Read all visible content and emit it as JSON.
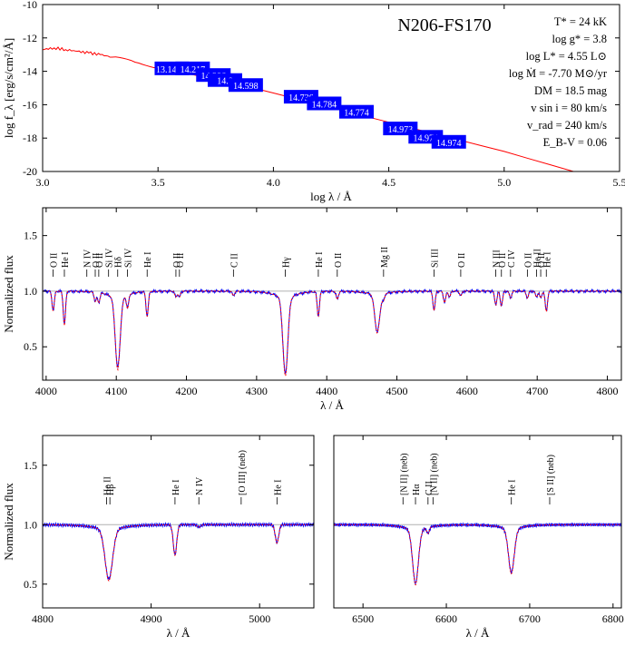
{
  "colors": {
    "model": "#ff0000",
    "observed": "#0000ff",
    "axis": "#000000",
    "photometry_box": "#0000ff",
    "photometry_text": "#ffffff",
    "reference_line": "#b0b0b0"
  },
  "chart_data": [
    {
      "type": "line",
      "panel": "sed",
      "title": "N206-FS170",
      "xlabel": "log λ / Å",
      "ylabel": "log f_λ [erg/s/cm²/Å]",
      "xlim": [
        3.0,
        5.5
      ],
      "ylim": [
        -20,
        -10
      ],
      "xticks": [
        "3.0",
        "3.5",
        "4.0",
        "4.5",
        "5.0",
        "5.5"
      ],
      "yticks": [
        "-10",
        "-12",
        "-14",
        "-16",
        "-18",
        "-20"
      ],
      "parameters": [
        "T* = 24 kK",
        "log g* = 3.8",
        "log L* = 4.55 L⊙",
        "log Ṁ = -7.70 M⊙/yr",
        "DM = 18.5 mag",
        "v sin i = 80 km/s",
        "v_rad = 240 km/s",
        "E_B-V = 0.06"
      ],
      "model_sed": {
        "x": [
          3.0,
          3.05,
          3.1,
          3.15,
          3.2,
          3.25,
          3.3,
          3.4,
          3.5,
          3.6,
          3.7,
          3.8,
          3.9,
          4.0,
          4.1,
          4.2,
          4.3,
          4.4,
          4.5,
          4.6,
          4.7,
          4.8,
          4.9,
          5.0,
          5.1,
          5.2,
          5.3
        ],
        "y": [
          -12.7,
          -12.6,
          -12.7,
          -12.8,
          -12.9,
          -13.0,
          -13.15,
          -13.45,
          -13.75,
          -14.05,
          -14.35,
          -14.65,
          -14.95,
          -15.3,
          -15.65,
          -16.0,
          -16.35,
          -16.7,
          -17.05,
          -17.4,
          -17.75,
          -18.1,
          -18.45,
          -18.8,
          -19.2,
          -19.6,
          -20.0
        ]
      },
      "photometry": [
        {
          "x": 3.56,
          "y": -13.85,
          "label": "13.14.21"
        },
        {
          "x": 3.65,
          "y": -13.85,
          "label": "14.217"
        },
        {
          "x": 3.74,
          "y": -14.25,
          "label": "14.386"
        },
        {
          "x": 3.79,
          "y": -14.55,
          "label": "14.8"
        },
        {
          "x": 3.88,
          "y": -14.85,
          "label": "14.598"
        },
        {
          "x": 4.12,
          "y": -15.55,
          "label": "14.736"
        },
        {
          "x": 4.22,
          "y": -15.95,
          "label": "14.784"
        },
        {
          "x": 4.36,
          "y": -16.45,
          "label": "14.774"
        },
        {
          "x": 4.55,
          "y": -17.45,
          "label": "14.973"
        },
        {
          "x": 4.66,
          "y": -17.95,
          "label": "14.974"
        },
        {
          "x": 4.76,
          "y": -18.25,
          "label": "14.974"
        }
      ]
    },
    {
      "type": "line",
      "panel": "blue",
      "xlabel": "λ / Å",
      "ylabel": "Normalized flux",
      "xlim": [
        3995,
        4820
      ],
      "ylim": [
        0.2,
        1.75
      ],
      "xticks": [
        4000,
        4100,
        4200,
        4300,
        4400,
        4500,
        4600,
        4700,
        4800
      ],
      "yticks": [
        "0.5",
        "1.0",
        "1.5"
      ],
      "lines": [
        {
          "x": 4010,
          "depth": 0.17
        },
        {
          "x": 4026,
          "depth": 0.3
        },
        {
          "x": 4070,
          "depth": 0.08
        },
        {
          "x": 4075,
          "depth": 0.09
        },
        {
          "x": 4102,
          "depth": 0.6
        },
        {
          "x": 4116,
          "depth": 0.12
        },
        {
          "x": 4144,
          "depth": 0.22
        },
        {
          "x": 4185,
          "depth": 0.05
        },
        {
          "x": 4190,
          "depth": 0.05
        },
        {
          "x": 4267,
          "depth": 0.04
        },
        {
          "x": 4341,
          "depth": 0.65
        },
        {
          "x": 4388,
          "depth": 0.22
        },
        {
          "x": 4415,
          "depth": 0.07
        },
        {
          "x": 4472,
          "depth": 0.32
        },
        {
          "x": 4481,
          "depth": 0.05
        },
        {
          "x": 4553,
          "depth": 0.17
        },
        {
          "x": 4568,
          "depth": 0.1
        },
        {
          "x": 4575,
          "depth": 0.05
        },
        {
          "x": 4591,
          "depth": 0.04
        },
        {
          "x": 4641,
          "depth": 0.12
        },
        {
          "x": 4649,
          "depth": 0.13
        },
        {
          "x": 4662,
          "depth": 0.06
        },
        {
          "x": 4686,
          "depth": 0.06
        },
        {
          "x": 4699,
          "depth": 0.05
        },
        {
          "x": 4705,
          "depth": 0.06
        },
        {
          "x": 4713,
          "depth": 0.18
        }
      ],
      "annotations": [
        {
          "label": "O II",
          "x": 4010
        },
        {
          "label": "He I",
          "x": 4026
        },
        {
          "label": "N IV",
          "x": 4058
        },
        {
          "label": "O II",
          "x": 4070
        },
        {
          "label": "O II",
          "x": 4075
        },
        {
          "label": "Si IV",
          "x": 4089
        },
        {
          "label": "Hδ",
          "x": 4102
        },
        {
          "label": "Si IV",
          "x": 4116
        },
        {
          "label": "He I",
          "x": 4144
        },
        {
          "label": "O II",
          "x": 4185
        },
        {
          "label": "O II",
          "x": 4190
        },
        {
          "label": "C II",
          "x": 4267
        },
        {
          "label": "Hγ",
          "x": 4341
        },
        {
          "label": "He I",
          "x": 4388
        },
        {
          "label": "O II",
          "x": 4415
        },
        {
          "label": "Mg II",
          "x": 4481
        },
        {
          "label": "Si III",
          "x": 4553
        },
        {
          "label": "O II",
          "x": 4591
        },
        {
          "label": "N III",
          "x": 4641
        },
        {
          "label": "O II",
          "x": 4649
        },
        {
          "label": "C IV",
          "x": 4662
        },
        {
          "label": "O II",
          "x": 4686
        },
        {
          "label": "He II",
          "x": 4699
        },
        {
          "label": "O II",
          "x": 4705
        },
        {
          "label": "He I",
          "x": 4713
        }
      ]
    },
    {
      "type": "line",
      "panel": "hbeta",
      "xlabel": "λ / Å",
      "ylabel": "Normalized flux",
      "xlim": [
        4800,
        5050
      ],
      "ylim": [
        0.3,
        1.75
      ],
      "xticks": [
        4800,
        4900,
        5000
      ],
      "yticks": [
        "0.5",
        "1.0",
        "1.5"
      ],
      "lines": [
        {
          "x": 4861,
          "depth": 0.4
        },
        {
          "x": 4922,
          "depth": 0.25
        },
        {
          "x": 4944,
          "depth": 0.02
        },
        {
          "x": 5016,
          "depth": 0.15
        }
      ],
      "annotations": [
        {
          "label": "He II",
          "x": 4859
        },
        {
          "label": "Hβ",
          "x": 4862
        },
        {
          "label": "He I",
          "x": 4922
        },
        {
          "label": "N IV",
          "x": 4944
        },
        {
          "label": "[O III] (neb)",
          "x": 4983
        },
        {
          "label": "He I",
          "x": 5016
        }
      ]
    },
    {
      "type": "line",
      "panel": "halpha",
      "xlabel": "λ / Å",
      "xlim": [
        6465,
        6810
      ],
      "ylim": [
        0.3,
        1.75
      ],
      "xticks": [
        6500,
        6600,
        6700,
        6800
      ],
      "lines": [
        {
          "x": 6563,
          "depth": 0.43
        },
        {
          "x": 6578,
          "depth": 0.05
        },
        {
          "x": 6678,
          "depth": 0.35
        }
      ],
      "annotations": [
        {
          "label": "[N II] (neb)",
          "x": 6548
        },
        {
          "label": "Hα",
          "x": 6563
        },
        {
          "label": "C II",
          "x": 6578
        },
        {
          "label": "[N II] (neb)",
          "x": 6584
        },
        {
          "label": "He I",
          "x": 6678
        },
        {
          "label": "[S II] (neb)",
          "x": 6724
        }
      ]
    }
  ]
}
